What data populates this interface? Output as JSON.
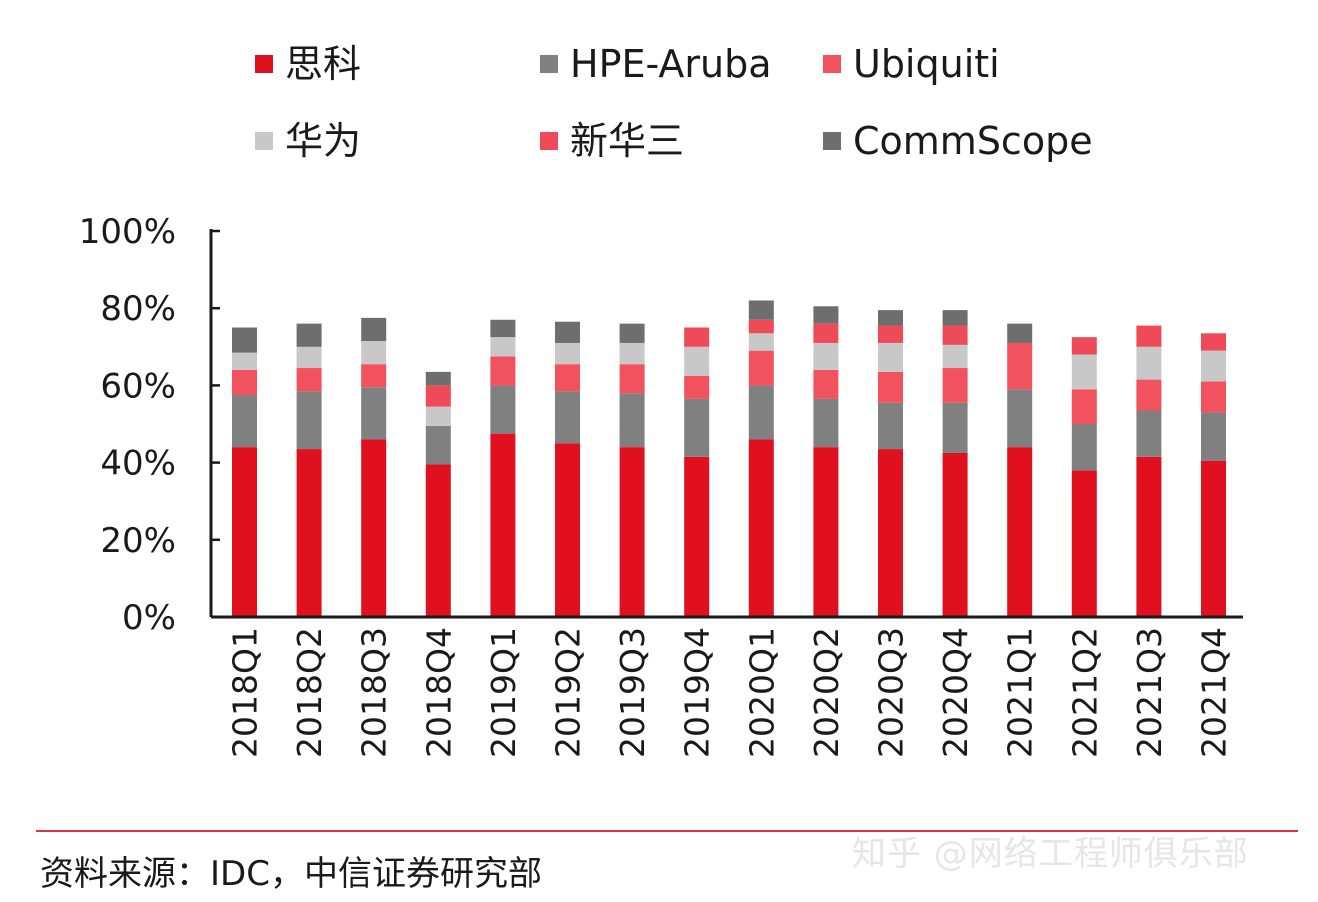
{
  "chart_data": {
    "type": "bar",
    "stacked": true,
    "title": "",
    "xlabel": "",
    "ylabel": "",
    "ylim": [
      0,
      100
    ],
    "y_ticks": [
      "0%",
      "20%",
      "40%",
      "60%",
      "80%",
      "100%"
    ],
    "y_tick_values": [
      0,
      20,
      40,
      60,
      80,
      100
    ],
    "categories": [
      "2018Q1",
      "2018Q2",
      "2018Q3",
      "2018Q4",
      "2019Q1",
      "2019Q2",
      "2019Q3",
      "2019Q4",
      "2020Q1",
      "2020Q2",
      "2020Q3",
      "2020Q4",
      "2021Q1",
      "2021Q2",
      "2021Q3",
      "2021Q4"
    ],
    "legend_position": "top",
    "series": [
      {
        "name": "思科",
        "color": "#e0101e",
        "values": [
          44,
          43.5,
          46,
          39.5,
          47.5,
          45,
          44,
          41.5,
          46,
          44,
          43.5,
          42.5,
          44,
          38,
          41.5,
          40.5
        ]
      },
      {
        "name": "HPE-Aruba",
        "color": "#808080",
        "values": [
          13.5,
          15,
          13.5,
          10,
          12.5,
          13.5,
          14,
          15,
          14,
          12.5,
          12,
          13,
          15,
          12,
          12,
          12.5
        ]
      },
      {
        "name": "Ubiquiti",
        "color": "#f2525e",
        "values": [
          6.5,
          6,
          6,
          0,
          7.5,
          7,
          7.5,
          6,
          9,
          7.5,
          8,
          9,
          12,
          9,
          8,
          8
        ]
      },
      {
        "name": "华为",
        "color": "#c8c8c8",
        "values": [
          4.5,
          5.5,
          6,
          5,
          5,
          5.5,
          5.5,
          7.5,
          4.5,
          7,
          7.5,
          6,
          0,
          9,
          8.5,
          8
        ]
      },
      {
        "name": "新华三",
        "color": "#ef4a57",
        "values": [
          0,
          0,
          0,
          5.5,
          0,
          0,
          0,
          5,
          3.5,
          5,
          4.5,
          5,
          0,
          4.5,
          5.5,
          4.5
        ]
      },
      {
        "name": "CommScope",
        "color": "#6e6e6e",
        "values": [
          6.5,
          6,
          6,
          3.5,
          4.5,
          5.5,
          5,
          0,
          5,
          4.5,
          4,
          4,
          5,
          0,
          0,
          0
        ]
      }
    ]
  },
  "source": "资料来源：IDC，中信证券研究部",
  "watermark": "知乎 @网络工程师俱乐部",
  "colors": {
    "axis": "#1a1a1a",
    "source_rule": "#d9353f"
  }
}
